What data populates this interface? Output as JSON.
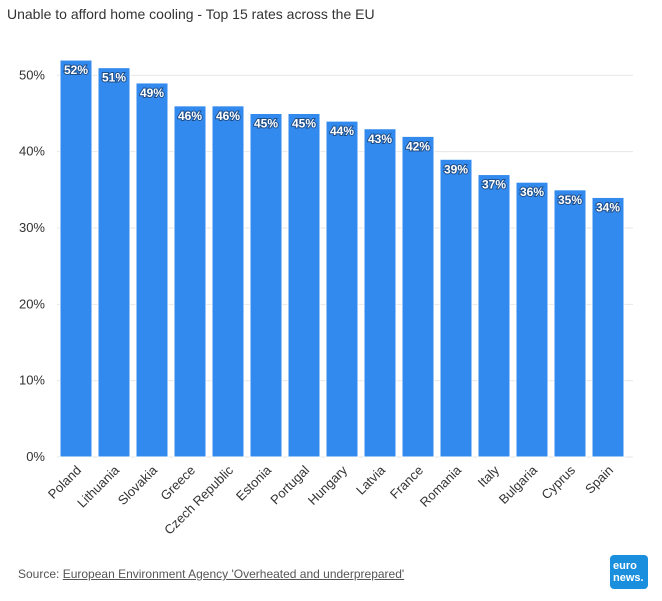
{
  "title": "Unable to afford home cooling - Top 15 rates across the EU",
  "source": {
    "prefix": "Source: ",
    "link_text": "European Environment Agency 'Overheated and underprepared'"
  },
  "logo": {
    "line1": "euro",
    "line2": "news."
  },
  "colors": {
    "bar": "#3289ee",
    "bar_stroke": "#ffffff",
    "grid": "#e6e6e6",
    "text": "#333333"
  },
  "chart_data": {
    "type": "bar",
    "title": "Unable to afford home cooling - Top 15 rates across the EU",
    "xlabel": "",
    "ylabel": "",
    "ylim": [
      0,
      50
    ],
    "yticks": [
      "0%",
      "10%",
      "20%",
      "30%",
      "40%",
      "50%"
    ],
    "grid": true,
    "categories": [
      "Poland",
      "Lithuania",
      "Slovakia",
      "Greece",
      "Czech Republic",
      "Estonia",
      "Portugal",
      "Hungary",
      "Latvia",
      "France",
      "Romania",
      "Italy",
      "Bulgaria",
      "Cyprus",
      "Spain"
    ],
    "values": [
      52,
      51,
      49,
      46,
      46,
      45,
      45,
      44,
      43,
      42,
      39,
      37,
      36,
      35,
      34
    ],
    "data_labels": [
      "52%",
      "51%",
      "49%",
      "46%",
      "46%",
      "45%",
      "45%",
      "44%",
      "43%",
      "42%",
      "39%",
      "37%",
      "36%",
      "35%",
      "34%"
    ]
  }
}
